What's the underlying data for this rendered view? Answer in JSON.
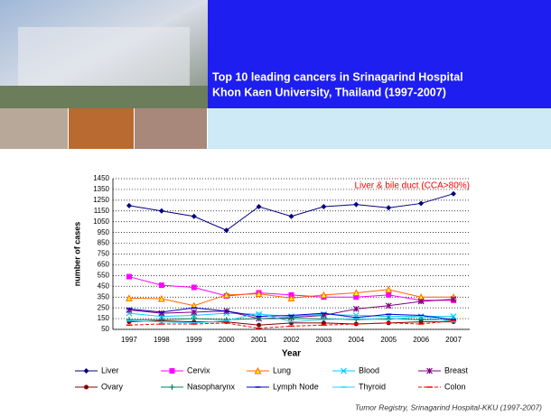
{
  "header": {
    "title_lines": [
      "Top 10 leading cancers in Srinagarind Hospital",
      "Khon Kaen University, Thailand (1997-2007)"
    ]
  },
  "footer": "Tumor Registry, Srinagarind Hospital-KKU (1997-2007)",
  "chart_data": {
    "type": "line",
    "annotation": "Liver & bile duct (CCA>80%)",
    "x_label": "Year",
    "y_label": "number of cases",
    "categories": [
      "1997",
      "1998",
      "1999",
      "2000",
      "2001",
      "2002",
      "2003",
      "2004",
      "2005",
      "2006",
      "2007"
    ],
    "ylim": [
      50,
      1450
    ],
    "yticks": [
      50,
      150,
      250,
      350,
      450,
      550,
      650,
      750,
      850,
      950,
      1050,
      1150,
      1250,
      1350,
      1450
    ],
    "grid": true,
    "series": [
      {
        "name": "Liver",
        "color": "#000080",
        "marker": "diamond",
        "values": [
          1200,
          1150,
          1100,
          970,
          1190,
          1100,
          1190,
          1210,
          1180,
          1220,
          1310
        ]
      },
      {
        "name": "Cervix",
        "color": "#ff00ff",
        "marker": "square",
        "values": [
          540,
          460,
          440,
          360,
          390,
          370,
          350,
          350,
          370,
          320,
          320
        ]
      },
      {
        "name": "Lung",
        "color": "#ff6600",
        "marker": "triangle",
        "values": [
          340,
          335,
          270,
          370,
          380,
          340,
          370,
          390,
          420,
          350,
          350
        ]
      },
      {
        "name": "Blood",
        "color": "#00ccff",
        "marker": "x",
        "values": [
          200,
          170,
          180,
          200,
          190,
          170,
          190,
          180,
          170,
          170,
          170
        ]
      },
      {
        "name": "Breast",
        "color": "#800080",
        "marker": "star",
        "values": [
          230,
          200,
          210,
          220,
          150,
          160,
          180,
          240,
          270,
          310,
          330
        ]
      },
      {
        "name": "Ovary",
        "color": "#800000",
        "marker": "circle",
        "values": [
          120,
          130,
          120,
          120,
          90,
          110,
          110,
          100,
          110,
          120,
          120
        ]
      },
      {
        "name": "Nasopharynx",
        "color": "#008060",
        "marker": "plus",
        "values": [
          140,
          140,
          150,
          140,
          150,
          150,
          150,
          140,
          150,
          140,
          140
        ]
      },
      {
        "name": "Lymph Node",
        "color": "#0000cc",
        "marker": "dash",
        "values": [
          240,
          210,
          250,
          220,
          170,
          180,
          200,
          160,
          190,
          180,
          140
        ]
      },
      {
        "name": "Thyroid",
        "color": "#33ccff",
        "marker": "dash",
        "values": [
          130,
          120,
          110,
          130,
          200,
          120,
          140,
          150,
          140,
          170,
          120
        ]
      },
      {
        "name": "Colon",
        "color": "#ff0000",
        "marker": "dash",
        "dashed": true,
        "values": [
          90,
          100,
          100,
          110,
          60,
          80,
          90,
          100,
          110,
          100,
          130
        ]
      }
    ]
  }
}
